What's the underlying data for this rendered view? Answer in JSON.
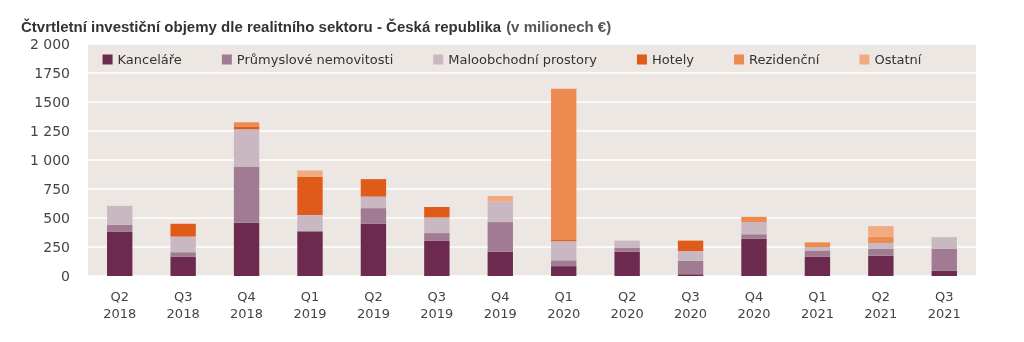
{
  "chart_data": {
    "type": "bar",
    "title": "Čtvrtletní investiční objemy dle realitního sektoru - Česká republika",
    "subtitle": "(v milionech €)",
    "categories": [
      "Q2\n2018",
      "Q3\n2018",
      "Q4\n2018",
      "Q1\n2019",
      "Q2\n2019",
      "Q3\n2019",
      "Q4\n2019",
      "Q1\n2020",
      "Q2\n2020",
      "Q3\n2020",
      "Q4\n2020",
      "Q1\n2021",
      "Q2\n2021",
      "Q3\n2021"
    ],
    "stacked": true,
    "grid": "y",
    "legend": "top",
    "ylim": [
      0,
      2000
    ],
    "yticks": [
      0,
      250,
      500,
      750,
      {
        "value": 1000,
        "label": "1 000"
      },
      {
        "value": 1250,
        "label": "1 250"
      },
      1500,
      1750,
      {
        "value": 2000,
        "label": "2 000"
      }
    ],
    "series": [
      {
        "name": "Kanceláře",
        "color": "#6b2a4e",
        "values": [
          380,
          165,
          460,
          385,
          450,
          305,
          210,
          85,
          210,
          15,
          320,
          165,
          175,
          45
        ]
      },
      {
        "name": "Průmyslové nemovitosti",
        "color": "#a07b92",
        "values": [
          60,
          40,
          480,
          0,
          135,
          65,
          255,
          50,
          35,
          115,
          40,
          55,
          60,
          190
        ]
      },
      {
        "name": "Maloobchodní prostory",
        "color": "#c9b8c2",
        "values": [
          165,
          135,
          325,
          140,
          100,
          135,
          175,
          165,
          60,
          85,
          105,
          30,
          50,
          100
        ]
      },
      {
        "name": "Hotely",
        "color": "#e05a1a",
        "values": [
          0,
          110,
          20,
          330,
          150,
          90,
          0,
          10,
          0,
          90,
          0,
          0,
          0,
          0
        ]
      },
      {
        "name": "Rezidenční",
        "color": "#ec8a50",
        "values": [
          0,
          0,
          40,
          0,
          0,
          0,
          0,
          1305,
          0,
          0,
          45,
          40,
          55,
          0
        ]
      },
      {
        "name": "Ostatní",
        "color": "#f2ab80",
        "values": [
          0,
          0,
          0,
          55,
          0,
          0,
          50,
          0,
          0,
          0,
          0,
          0,
          90,
          0
        ]
      }
    ]
  }
}
